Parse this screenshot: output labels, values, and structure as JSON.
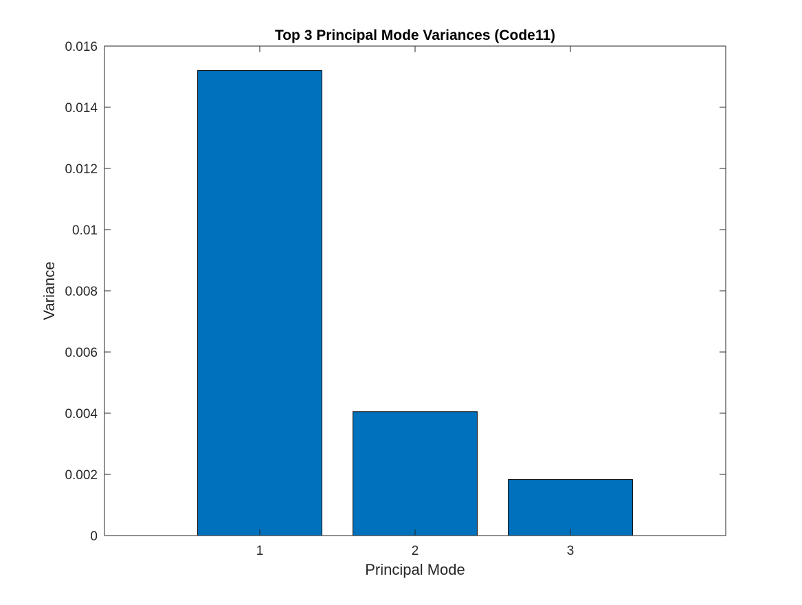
{
  "chart_data": {
    "type": "bar",
    "title": "Top 3 Principal Mode Variances (Code11)",
    "xlabel": "Principal Mode",
    "ylabel": "Variance",
    "categories": [
      "1",
      "2",
      "3"
    ],
    "values": [
      0.0152,
      0.00405,
      0.00183
    ],
    "xlim": [
      0,
      4
    ],
    "ylim": [
      0,
      0.016
    ],
    "yticks": [
      0,
      0.002,
      0.004,
      0.006,
      0.008,
      0.01,
      0.012,
      0.014,
      0.016
    ],
    "ytick_labels": [
      "0",
      "0.002",
      "0.004",
      "0.006",
      "0.008",
      "0.01",
      "0.012",
      "0.014",
      "0.016"
    ],
    "grid": false,
    "bar_color": "#0072BD",
    "bar_edge_color": "#000000"
  }
}
